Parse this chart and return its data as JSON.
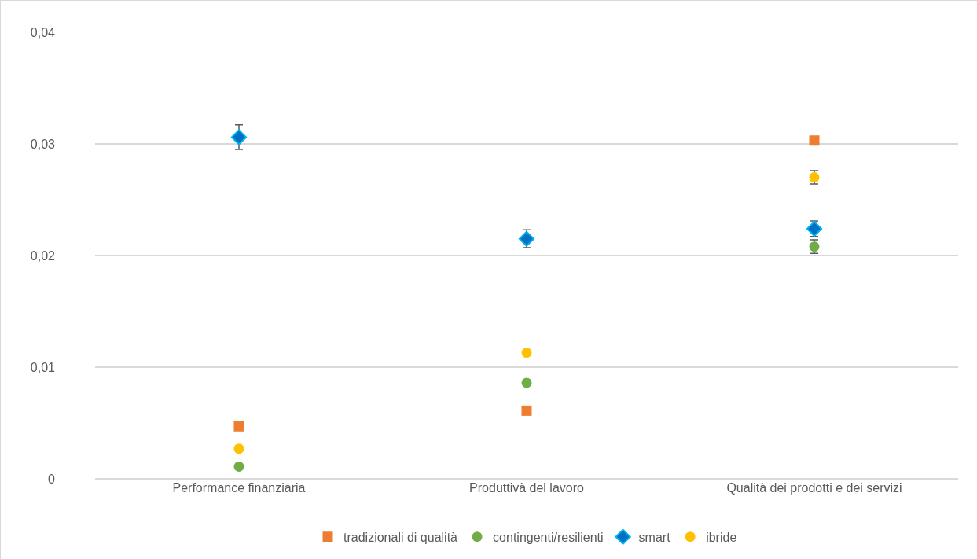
{
  "chart_data": {
    "type": "scatter",
    "categories": [
      "Performance finanziaria",
      "Produttivà del lavoro",
      "Qualità dei prodotti e dei servizi"
    ],
    "series": [
      {
        "name": "tradizionali di qualità",
        "color": "#ed7d31",
        "marker": "square",
        "values": [
          0.0047,
          0.0061,
          0.0303
        ]
      },
      {
        "name": "contingenti/resilienti",
        "color": "#70ad47",
        "marker": "circle",
        "values": [
          0.0011,
          0.0086,
          0.0208
        ],
        "errors": [
          null,
          null,
          0.0006
        ]
      },
      {
        "name": "smart",
        "color": "#00b0f0",
        "marker": "diamond",
        "values": [
          0.0306,
          0.0215,
          0.0224
        ],
        "errors": [
          0.0011,
          0.0008,
          0.0007
        ]
      },
      {
        "name": "ibride",
        "color": "#ffc000",
        "marker": "circle",
        "values": [
          0.0027,
          0.0113,
          0.027
        ],
        "errors": [
          null,
          null,
          0.0006
        ]
      }
    ],
    "ylim": [
      0,
      0.04
    ],
    "yticks": [
      {
        "value": 0,
        "label": "0"
      },
      {
        "value": 0.01,
        "label": "0,01"
      },
      {
        "value": 0.02,
        "label": "0,02"
      },
      {
        "value": 0.03,
        "label": "0,03"
      },
      {
        "value": 0.04,
        "label": "0,04"
      }
    ],
    "grid": "y",
    "legend": "bottom"
  }
}
